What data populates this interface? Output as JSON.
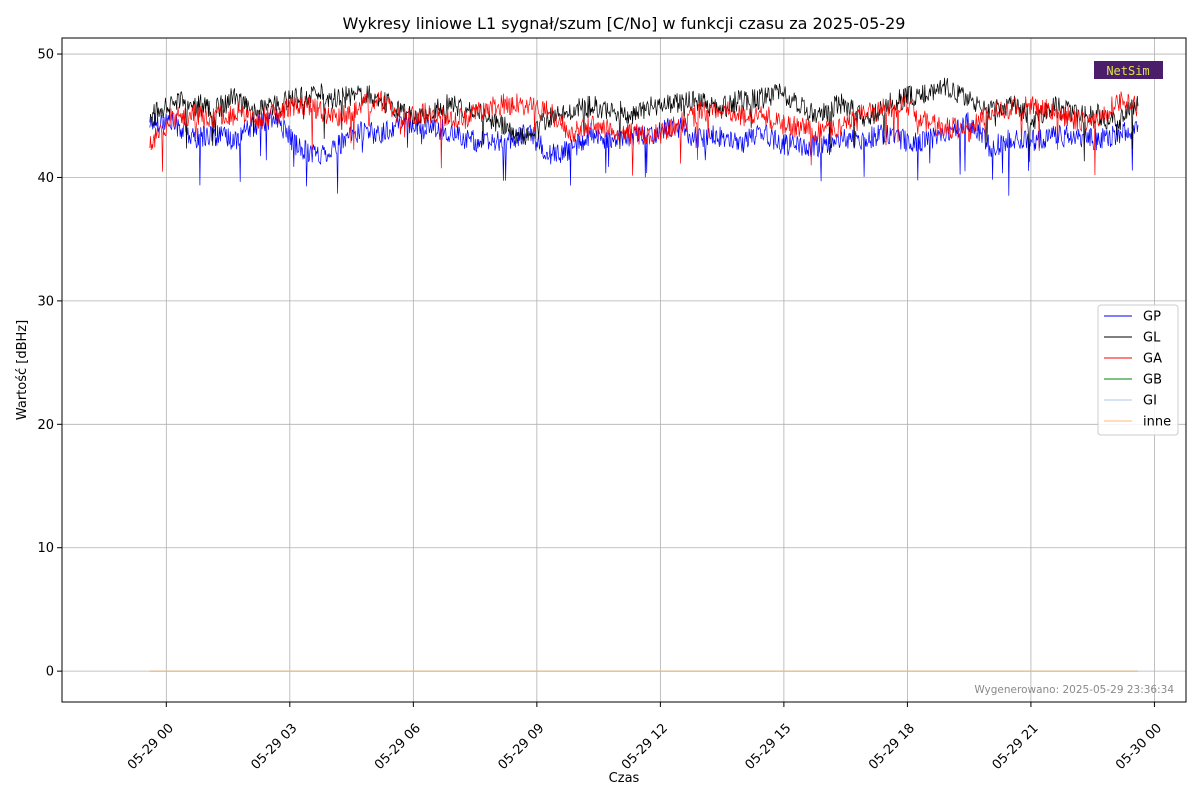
{
  "chart_data": {
    "type": "line",
    "title": "Wykresy liniowe L1 sygnał/szum [C/No] w funkcji czasu za 2025-05-29",
    "xlabel": "Czas",
    "ylabel": "Wartość [dBHz]",
    "xlim": [
      "2025-05-28 21:28",
      "2025-05-30 00:46"
    ],
    "ylim": [
      -2.5,
      51.3
    ],
    "x_range": [
      "2025-05-28 23:36",
      "2025-05-29 23:36"
    ],
    "x_ticks": [
      "05-29 00",
      "05-29 03",
      "05-29 06",
      "05-29 09",
      "05-29 12",
      "05-29 15",
      "05-29 18",
      "05-29 21",
      "05-30 00"
    ],
    "y_ticks": [
      0,
      10,
      20,
      30,
      40,
      50
    ],
    "grid": true,
    "legend_position": "center-right",
    "series": [
      {
        "name": "GP",
        "color": "#0000ff",
        "values": [
          44.5,
          44.6,
          43.2,
          43.5,
          43.0,
          44.3,
          44.8,
          42.5,
          41.8,
          42.6,
          43.8,
          43.5,
          44.6,
          44.0,
          43.8,
          43.2,
          42.8,
          42.9,
          43.7,
          41.8,
          42.2,
          43.6,
          43.0,
          43.4,
          43.6,
          44.2,
          43.2,
          43.4,
          42.6,
          43.8,
          42.7,
          42.6,
          42.5,
          43.1,
          43.1,
          43.6,
          42.9,
          43.0,
          43.8,
          44.5,
          42.4,
          43.1,
          43.0,
          43.4,
          43.3,
          43.1,
          43.5,
          44.0
        ]
      },
      {
        "name": "GL",
        "color": "#000000",
        "values": [
          44.8,
          46.1,
          46.3,
          45.3,
          46.5,
          45.2,
          45.9,
          46.4,
          46.8,
          46.3,
          46.9,
          46.2,
          45.5,
          44.8,
          45.9,
          45.6,
          44.9,
          44.0,
          43.1,
          44.9,
          45.4,
          45.8,
          45.5,
          45.1,
          45.9,
          45.9,
          46.2,
          45.5,
          46.2,
          46.4,
          46.8,
          45.7,
          45.1,
          46.1,
          44.6,
          45.9,
          46.5,
          46.9,
          47.3,
          46.2,
          45.5,
          45.9,
          44.7,
          45.8,
          45.1,
          45.2,
          44.3,
          46.1
        ]
      },
      {
        "name": "GA",
        "color": "#ff0000",
        "values": [
          42.6,
          44.8,
          45.1,
          44.7,
          45.4,
          44.6,
          45.1,
          45.9,
          45.5,
          44.8,
          45.8,
          46.2,
          44.8,
          45.3,
          45.0,
          44.7,
          45.6,
          46.0,
          45.9,
          45.3,
          43.6,
          44.1,
          43.8,
          43.5,
          43.4,
          44.1,
          45.1,
          45.7,
          45.0,
          45.2,
          44.4,
          44.0,
          43.6,
          44.2,
          45.4,
          45.5,
          45.9,
          44.3,
          44.1,
          43.7,
          45.5,
          45.6,
          45.9,
          45.4,
          44.6,
          44.5,
          46.3,
          45.7
        ]
      },
      {
        "name": "GB",
        "color": "#008000",
        "values": [
          0,
          0
        ]
      },
      {
        "name": "GI",
        "color": "#aec7e8",
        "values": [
          0,
          0
        ]
      },
      {
        "name": "inne",
        "color": "#ffbb78",
        "values": [
          0,
          0
        ]
      }
    ]
  },
  "footer": {
    "generated": "Wygenerowano: 2025-05-29 23:36:34"
  },
  "logo": {
    "text": "NetSim"
  }
}
